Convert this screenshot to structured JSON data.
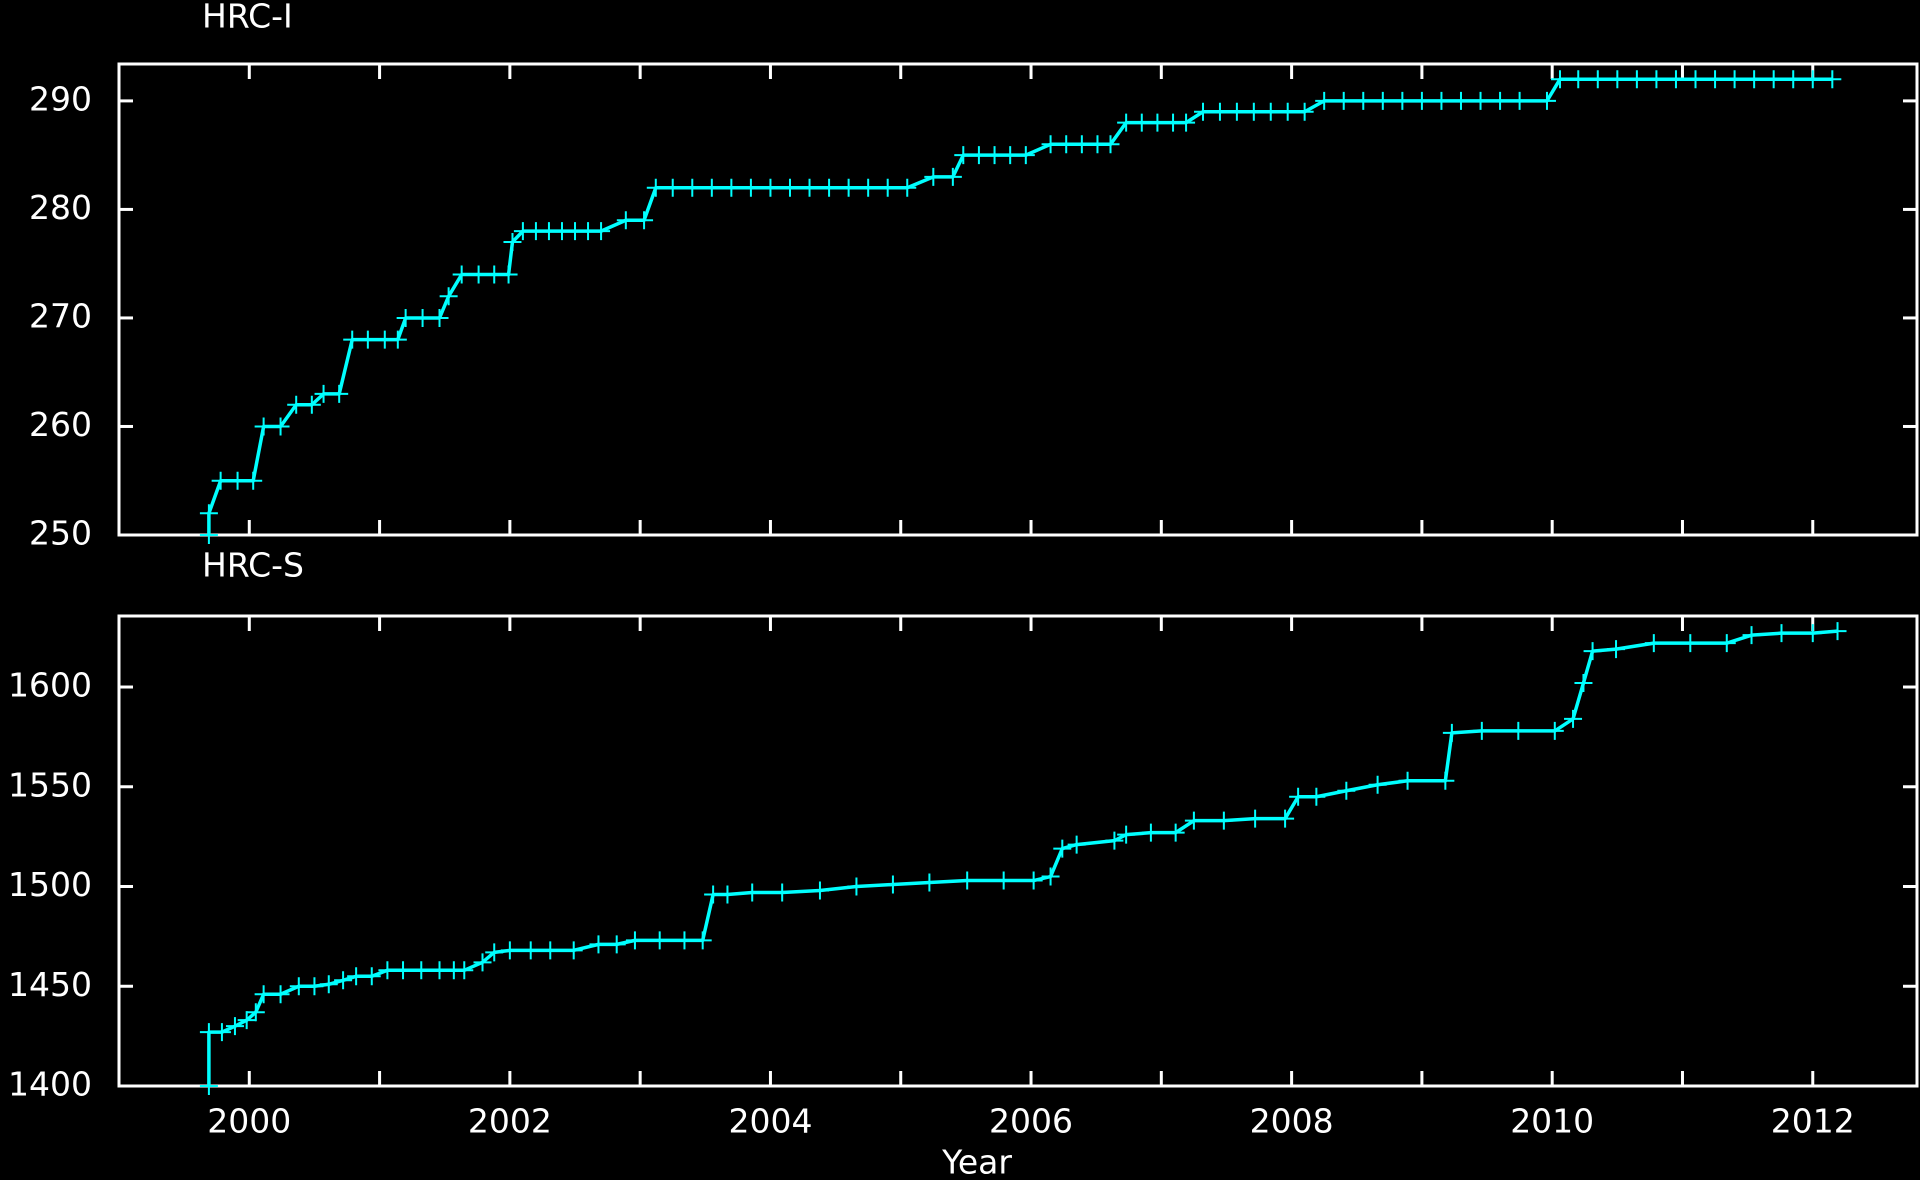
{
  "chart_data": [
    {
      "type": "line",
      "title": "HRC-I",
      "color": "#00ffff",
      "markers": "plus",
      "xticklabels": false,
      "xlim": [
        1999,
        2012.8
      ],
      "xticks": [
        2000,
        2002,
        2004,
        2006,
        2008,
        2010,
        2012
      ],
      "xminorticks": [
        2001,
        2003,
        2005,
        2007,
        2009,
        2011
      ],
      "ylim": [
        250,
        293.4
      ],
      "yticks": [
        250,
        260,
        270,
        280,
        290
      ],
      "series": [
        {
          "name": "HRC-I",
          "color": "#00ffff",
          "x": [
            1999.69,
            1999.69,
            1999.78,
            1999.91,
            2000.03,
            2000.11,
            2000.24,
            2000.36,
            2000.48,
            2000.57,
            2000.69,
            2000.79,
            2000.91,
            2001.04,
            2001.14,
            2001.2,
            2001.33,
            2001.46,
            2001.53,
            2001.63,
            2001.76,
            2001.88,
            2001.99,
            2002.02,
            2002.1,
            2002.2,
            2002.3,
            2002.4,
            2002.5,
            2002.6,
            2002.7,
            2002.89,
            2003.03,
            2003.12,
            2003.25,
            2003.4,
            2003.55,
            2003.7,
            2003.85,
            2004.0,
            2004.15,
            2004.3,
            2004.45,
            2004.6,
            2004.75,
            2004.9,
            2005.05,
            2005.25,
            2005.4,
            2005.48,
            2005.6,
            2005.72,
            2005.84,
            2005.96,
            2006.15,
            2006.27,
            2006.39,
            2006.51,
            2006.61,
            2006.73,
            2006.85,
            2006.97,
            2007.09,
            2007.19,
            2007.32,
            2007.45,
            2007.58,
            2007.71,
            2007.84,
            2007.97,
            2008.1,
            2008.25,
            2008.4,
            2008.55,
            2008.7,
            2008.85,
            2009.0,
            2009.15,
            2009.3,
            2009.45,
            2009.6,
            2009.75,
            2009.96,
            2010.06,
            2010.2,
            2010.35,
            2010.5,
            2010.65,
            2010.8,
            2010.95,
            2011.1,
            2011.25,
            2011.4,
            2011.55,
            2011.7,
            2011.85,
            2012.0,
            2012.15
          ],
          "values": [
            250,
            252,
            255,
            255,
            255,
            260,
            260,
            262,
            262,
            263,
            263,
            268,
            268,
            268,
            268,
            270,
            270,
            270,
            272,
            274,
            274,
            274,
            274,
            277,
            278,
            278,
            278,
            278,
            278,
            278,
            278,
            279,
            279,
            282,
            282,
            282,
            282,
            282,
            282,
            282,
            282,
            282,
            282,
            282,
            282,
            282,
            282,
            283,
            283,
            285,
            285,
            285,
            285,
            285,
            286,
            286,
            286,
            286,
            286,
            288,
            288,
            288,
            288,
            288,
            289,
            289,
            289,
            289,
            289,
            289,
            289,
            290,
            290,
            290,
            290,
            290,
            290,
            290,
            290,
            290,
            290,
            290,
            290,
            292,
            292,
            292,
            292,
            292,
            292,
            292,
            292,
            292,
            292,
            292,
            292,
            292,
            292,
            292
          ]
        }
      ]
    },
    {
      "type": "line",
      "title": "HRC-S",
      "xlabel": "Year",
      "color": "#00ffff",
      "markers": "plus",
      "xticklabels": true,
      "xlim": [
        1999,
        2012.8
      ],
      "xticks": [
        2000,
        2002,
        2004,
        2006,
        2008,
        2010,
        2012
      ],
      "xminorticks": [
        2001,
        2003,
        2005,
        2007,
        2009,
        2011
      ],
      "ylim": [
        1400,
        1635.6
      ],
      "yticks": [
        1400,
        1450,
        1500,
        1550,
        1600
      ],
      "series": [
        {
          "name": "HRC-S",
          "color": "#00ffff",
          "x": [
            1999.69,
            1999.69,
            1999.79,
            1999.89,
            1999.98,
            2000.05,
            2000.11,
            2000.24,
            2000.38,
            2000.5,
            2000.61,
            2000.72,
            2000.82,
            2000.94,
            2001.06,
            2001.18,
            2001.32,
            2001.46,
            2001.57,
            2001.65,
            2001.79,
            2001.88,
            2002.0,
            2002.16,
            2002.31,
            2002.49,
            2002.68,
            2002.82,
            2002.96,
            2003.15,
            2003.34,
            2003.48,
            2003.56,
            2003.67,
            2003.86,
            2004.09,
            2004.38,
            2004.66,
            2004.94,
            2005.22,
            2005.51,
            2005.79,
            2006.02,
            2006.15,
            2006.24,
            2006.35,
            2006.64,
            2006.73,
            2006.92,
            2007.11,
            2007.25,
            2007.48,
            2007.72,
            2007.95,
            2008.05,
            2008.19,
            2008.42,
            2008.66,
            2008.89,
            2009.18,
            2009.23,
            2009.46,
            2009.74,
            2010.02,
            2010.16,
            2010.24,
            2010.31,
            2010.49,
            2010.78,
            2011.06,
            2011.34,
            2011.53,
            2011.76,
            2012.0,
            2012.19
          ],
          "values": [
            1400,
            1427,
            1427,
            1430,
            1433,
            1437,
            1446,
            1446,
            1450,
            1450,
            1451,
            1453,
            1455,
            1455,
            1458,
            1458,
            1458,
            1458,
            1458,
            1458,
            1462,
            1467,
            1468,
            1468,
            1468,
            1468,
            1471,
            1471,
            1473,
            1473,
            1473,
            1473,
            1496,
            1496,
            1497,
            1497,
            1498,
            1500,
            1501,
            1502,
            1503,
            1503,
            1503,
            1505,
            1519,
            1521,
            1523,
            1526,
            1527,
            1527,
            1533,
            1533,
            1534,
            1534,
            1545,
            1545,
            1548,
            1551,
            1553,
            1553,
            1577,
            1578,
            1578,
            1578,
            1584,
            1602,
            1618,
            1619,
            1622,
            1622,
            1622,
            1626,
            1627,
            1627,
            1628
          ]
        }
      ]
    }
  ]
}
